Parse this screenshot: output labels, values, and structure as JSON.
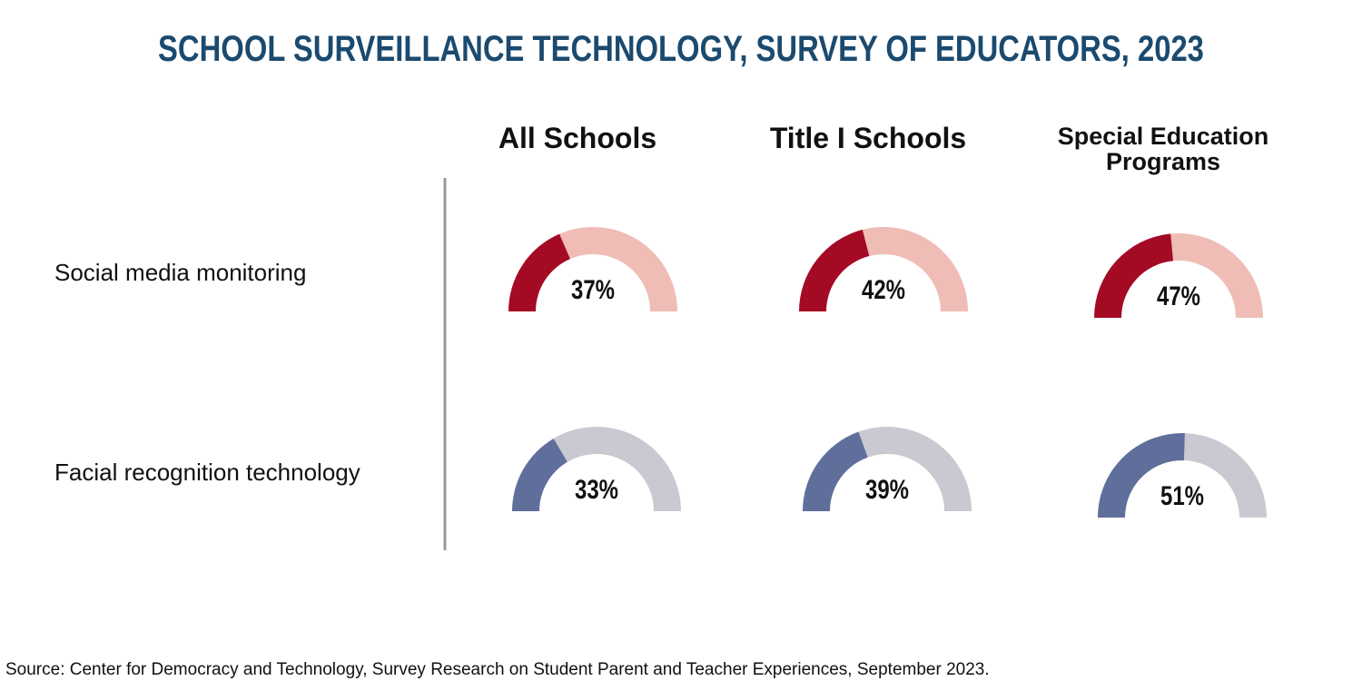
{
  "chart_data": {
    "type": "gauge",
    "title": "SCHOOL SURVEILLANCE TECHNOLOGY, SURVEY OF EDUCATORS, 2023",
    "categories": [
      "All Schools",
      "Title I Schools",
      "Special Education Programs"
    ],
    "series": [
      {
        "name": "Social media monitoring",
        "color": "#a50a25",
        "track_color": "#efbdb6",
        "values": [
          37,
          42,
          47
        ],
        "value_labels": [
          "37%",
          "42%",
          "47%"
        ]
      },
      {
        "name": "Facial recognition technology",
        "color": "#5f6e9b",
        "track_color": "#cac8d1",
        "values": [
          33,
          39,
          51
        ],
        "value_labels": [
          "33%",
          "39%",
          "51%"
        ]
      }
    ],
    "ylim": [
      0,
      100
    ],
    "source": "Source: Center for Democracy and Technology, Survey Research on Student Parent and Teacher Experiences, September 2023."
  }
}
